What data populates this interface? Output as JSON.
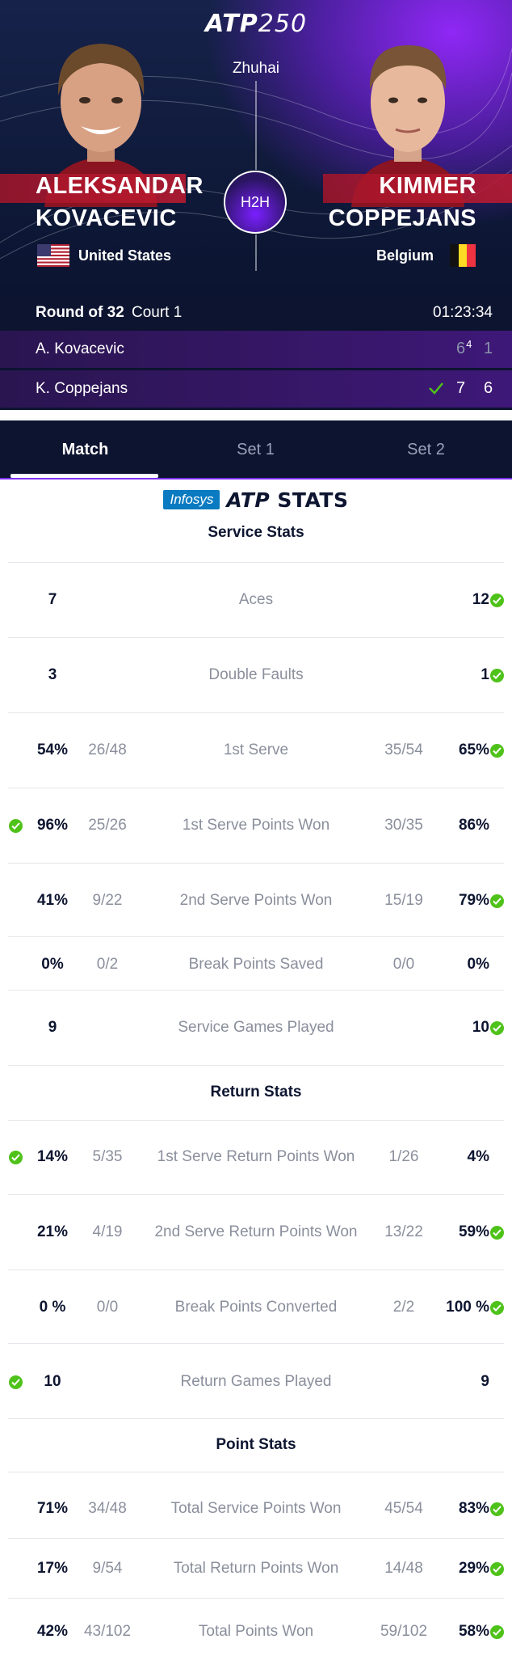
{
  "header": {
    "logo_text": "ATP",
    "logo_tier": "250",
    "venue": "Zhuhai",
    "h2h_label": "H2H"
  },
  "player1": {
    "first_name": "ALEKSANDAR",
    "last_name": "KOVACEVIC",
    "country": "United States",
    "short_name": "A. Kovacevic",
    "sets": [
      {
        "games": "6",
        "tiebreak": "4"
      },
      {
        "games": "1",
        "tiebreak": ""
      }
    ]
  },
  "player2": {
    "first_name": "KIMMER",
    "last_name": "COPPEJANS",
    "country": "Belgium",
    "short_name": "K. Coppejans",
    "sets": [
      {
        "games": "7",
        "tiebreak": ""
      },
      {
        "games": "6",
        "tiebreak": ""
      }
    ]
  },
  "match": {
    "round": "Round of 32",
    "court": "Court 1",
    "duration": "01:23:34"
  },
  "tabs": [
    "Match",
    "Set 1",
    "Set 2"
  ],
  "stats_brand": {
    "sponsor": "Infosys",
    "logo_text": "ATP",
    "label": "STATS"
  },
  "colors": {
    "accent_purple": "#7b2ff7",
    "check_green": "#4fc21a",
    "navy": "#0d1430"
  },
  "service_stats": {
    "title": "Service Stats",
    "rows": [
      {
        "label": "Aces",
        "p1": "7",
        "p1_ratio": "",
        "p2": "12",
        "p2_ratio": "",
        "winner": "p2"
      },
      {
        "label": "Double Faults",
        "p1": "3",
        "p1_ratio": "",
        "p2": "1",
        "p2_ratio": "",
        "winner": "p2"
      },
      {
        "label": "1st Serve",
        "p1": "54%",
        "p1_ratio": "26/48",
        "p2": "65%",
        "p2_ratio": "35/54",
        "winner": "p2"
      },
      {
        "label": "1st Serve Points Won",
        "p1": "96%",
        "p1_ratio": "25/26",
        "p2": "86%",
        "p2_ratio": "30/35",
        "winner": "p1"
      },
      {
        "label": "2nd Serve Points Won",
        "p1": "41%",
        "p1_ratio": "9/22",
        "p2": "79%",
        "p2_ratio": "15/19",
        "winner": "p2"
      },
      {
        "label": "Break Points Saved",
        "p1": "0%",
        "p1_ratio": "0/2",
        "p2": "0%",
        "p2_ratio": "0/0",
        "winner": ""
      },
      {
        "label": "Service Games Played",
        "p1": "9",
        "p1_ratio": "",
        "p2": "10",
        "p2_ratio": "",
        "winner": "p2"
      }
    ]
  },
  "return_stats": {
    "title": "Return Stats",
    "rows": [
      {
        "label": "1st Serve Return Points Won",
        "p1": "14%",
        "p1_ratio": "5/35",
        "p2": "4%",
        "p2_ratio": "1/26",
        "winner": "p1"
      },
      {
        "label": "2nd Serve Return Points Won",
        "p1": "21%",
        "p1_ratio": "4/19",
        "p2": "59%",
        "p2_ratio": "13/22",
        "winner": "p2"
      },
      {
        "label": "Break Points Converted",
        "p1": "0 %",
        "p1_ratio": "0/0",
        "p2": "100 %",
        "p2_ratio": "2/2",
        "winner": "p2"
      },
      {
        "label": "Return Games Played",
        "p1": "10",
        "p1_ratio": "",
        "p2": "9",
        "p2_ratio": "",
        "winner": "p1"
      }
    ]
  },
  "point_stats": {
    "title": "Point Stats",
    "rows": [
      {
        "label": "Total Service Points Won",
        "p1": "71%",
        "p1_ratio": "34/48",
        "p2": "83%",
        "p2_ratio": "45/54",
        "winner": "p2"
      },
      {
        "label": "Total Return Points Won",
        "p1": "17%",
        "p1_ratio": "9/54",
        "p2": "29%",
        "p2_ratio": "14/48",
        "winner": "p2"
      },
      {
        "label": "Total Points Won",
        "p1": "42%",
        "p1_ratio": "43/102",
        "p2": "58%",
        "p2_ratio": "59/102",
        "winner": "p2"
      }
    ]
  }
}
